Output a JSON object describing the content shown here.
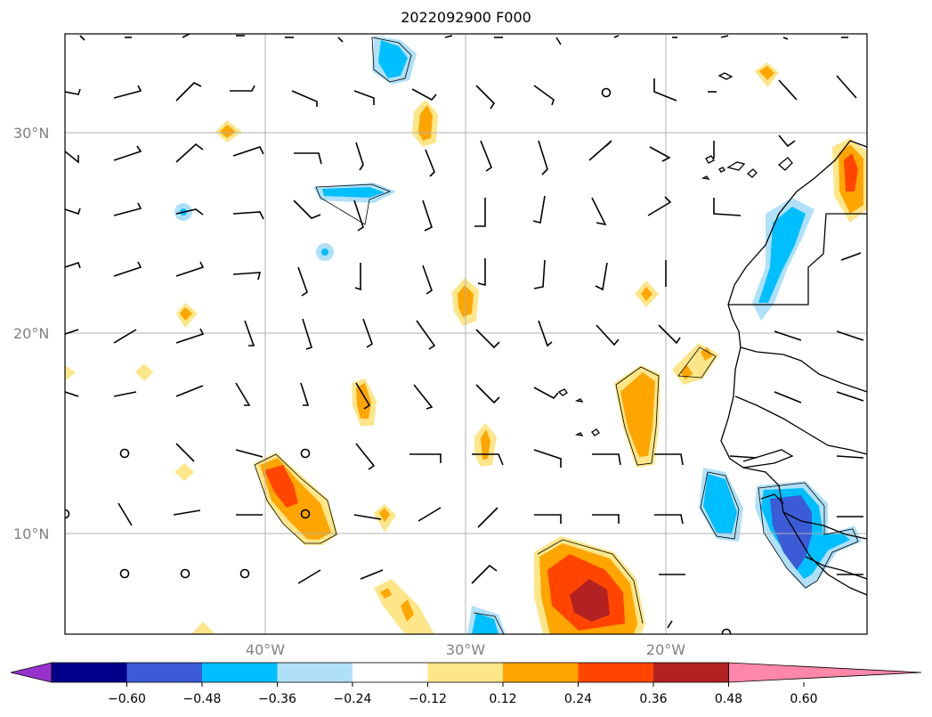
{
  "title": "2022092900 F000",
  "lat_labels": [
    "30°N",
    "20°N",
    "10°N"
  ],
  "lon_labels": [
    "40°W",
    "30°W",
    "20°W"
  ],
  "colorbar": {
    "ticks": [
      "−0.60",
      "−0.48",
      "−0.36",
      "−0.24",
      "−0.12",
      "0.12",
      "0.24",
      "0.36",
      "0.48",
      "0.60"
    ],
    "colors": [
      "#9932cc",
      "#00008b",
      "#3b5cd6",
      "#00bfff",
      "#b0e0f8",
      "#ffffff",
      "#fde68a",
      "#ffa500",
      "#ff4500",
      "#b22222",
      "#ff88aa"
    ]
  },
  "colors": {
    "grid": "#b0b0b0",
    "coast": "#000000",
    "barb": "#000000"
  }
}
